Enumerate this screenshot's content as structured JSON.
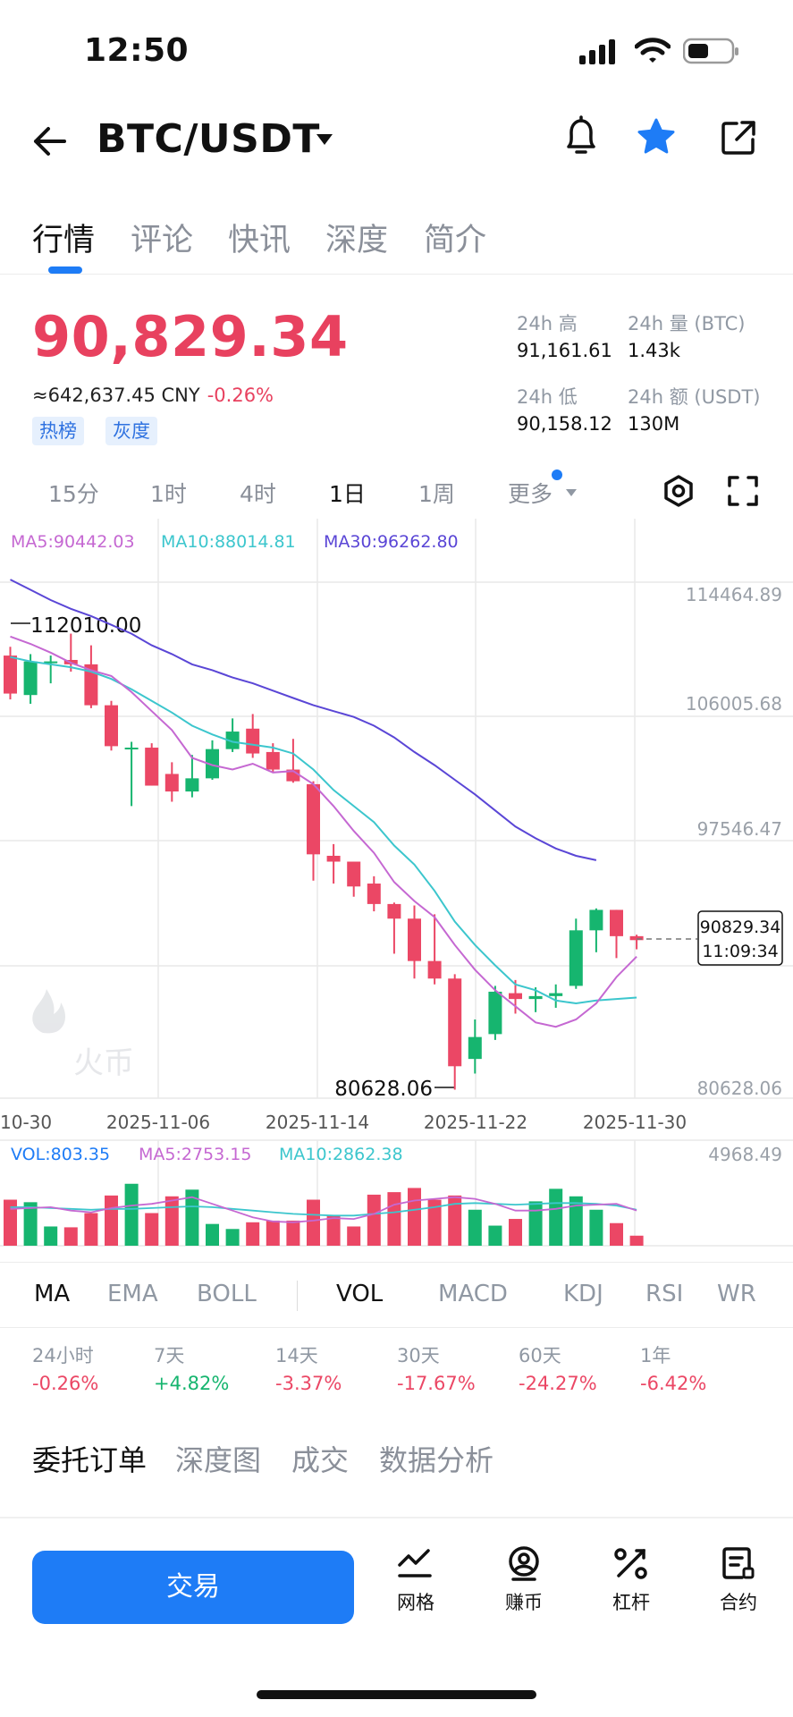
{
  "status": {
    "time": "12:50"
  },
  "header": {
    "pair": "BTC/USDT"
  },
  "tabs": [
    "行情",
    "评论",
    "快讯",
    "深度",
    "简介"
  ],
  "price": {
    "last": "90,829.34",
    "cny": "≈642,637.45 CNY",
    "change": "-0.26%",
    "tags": [
      "热榜",
      "灰度"
    ]
  },
  "stats": {
    "high_label": "24h 高",
    "high": "91,161.61",
    "vol_label": "24h 量 (BTC)",
    "vol": "1.43k",
    "low_label": "24h 低",
    "low": "90,158.12",
    "amt_label": "24h 额 (USDT)",
    "amt": "130M"
  },
  "intervals": [
    "15分",
    "1时",
    "4时",
    "1日",
    "1周",
    "更多"
  ],
  "ma_legend": {
    "ma5": "MA5:90442.03",
    "ma10": "MA10:88014.81",
    "ma30": "MA30:96262.80"
  },
  "watermark": "火币",
  "colors": {
    "up": "#16b56f",
    "down": "#eb4765",
    "ma5": "#c568d2",
    "ma10": "#3cc6cd",
    "ma30": "#5a46d6",
    "accent": "#1e7cf6"
  },
  "chart_data": {
    "type": "candlestick",
    "y_axis_labels": [
      "114464.89",
      "106005.68",
      "97546.47",
      "80628.06"
    ],
    "ylim": [
      80628.06,
      114464.89
    ],
    "x_axis_labels": [
      "10-30",
      "2025-11-06",
      "2025-11-14",
      "2025-11-22",
      "2025-11-30"
    ],
    "annotations": {
      "high": "112010.00",
      "low": "80628.06"
    },
    "last_price_label": "90829.34",
    "countdown": "11:09:34",
    "candles": [
      {
        "o": 110300,
        "h": 110900,
        "l": 107300,
        "c": 107700
      },
      {
        "o": 107600,
        "h": 110400,
        "l": 107000,
        "c": 109900
      },
      {
        "o": 109800,
        "h": 110300,
        "l": 108400,
        "c": 109900
      },
      {
        "o": 110000,
        "h": 111800,
        "l": 109200,
        "c": 109700
      },
      {
        "o": 109700,
        "h": 111000,
        "l": 106700,
        "c": 106900
      },
      {
        "o": 106900,
        "h": 107200,
        "l": 103800,
        "c": 104100
      },
      {
        "o": 103900,
        "h": 104400,
        "l": 100000,
        "c": 104000
      },
      {
        "o": 104000,
        "h": 104300,
        "l": 101400,
        "c": 101400
      },
      {
        "o": 102200,
        "h": 103000,
        "l": 100300,
        "c": 101000
      },
      {
        "o": 101000,
        "h": 103500,
        "l": 100600,
        "c": 101900
      },
      {
        "o": 101900,
        "h": 104500,
        "l": 101800,
        "c": 103900
      },
      {
        "o": 103900,
        "h": 106000,
        "l": 103700,
        "c": 105100
      },
      {
        "o": 105300,
        "h": 106300,
        "l": 103300,
        "c": 103600
      },
      {
        "o": 103700,
        "h": 104300,
        "l": 102300,
        "c": 102500
      },
      {
        "o": 102500,
        "h": 104600,
        "l": 101600,
        "c": 101700
      },
      {
        "o": 101500,
        "h": 101700,
        "l": 94900,
        "c": 96700
      },
      {
        "o": 96600,
        "h": 97400,
        "l": 94700,
        "c": 96200
      },
      {
        "o": 96200,
        "h": 96200,
        "l": 93800,
        "c": 94500
      },
      {
        "o": 94700,
        "h": 95200,
        "l": 92800,
        "c": 93300
      },
      {
        "o": 93300,
        "h": 93400,
        "l": 89900,
        "c": 92300
      },
      {
        "o": 92300,
        "h": 93200,
        "l": 88200,
        "c": 89400
      },
      {
        "o": 89400,
        "h": 92600,
        "l": 87800,
        "c": 88200
      },
      {
        "o": 88200,
        "h": 88500,
        "l": 80600,
        "c": 82200
      },
      {
        "o": 82700,
        "h": 85400,
        "l": 81700,
        "c": 84200
      },
      {
        "o": 84400,
        "h": 87700,
        "l": 84000,
        "c": 87300
      },
      {
        "o": 87200,
        "h": 88100,
        "l": 85800,
        "c": 86800
      },
      {
        "o": 86800,
        "h": 87600,
        "l": 85900,
        "c": 87000
      },
      {
        "o": 87000,
        "h": 87800,
        "l": 86200,
        "c": 87200
      },
      {
        "o": 87700,
        "h": 92300,
        "l": 87500,
        "c": 91500
      },
      {
        "o": 91500,
        "h": 93000,
        "l": 90000,
        "c": 92900
      },
      {
        "o": 92900,
        "h": 92900,
        "l": 89600,
        "c": 91100
      },
      {
        "o": 91100,
        "h": 91200,
        "l": 90200,
        "c": 90829.34
      }
    ],
    "ma5": [
      111600,
      111100,
      110500,
      109800,
      109300,
      108900,
      107800,
      106500,
      105200,
      103300,
      102800,
      102500,
      102900,
      102300,
      102400,
      101500,
      100000,
      98300,
      96800,
      94800,
      93500,
      92400,
      90500,
      88800,
      87400,
      86300,
      85200,
      84900,
      85400,
      86500,
      88300,
      89700
    ],
    "ma10": [
      110200,
      109900,
      109700,
      109500,
      109200,
      108700,
      108000,
      107200,
      106400,
      105500,
      104900,
      104400,
      104200,
      104000,
      103600,
      102500,
      101100,
      100000,
      98900,
      97300,
      96000,
      94200,
      92100,
      90500,
      89100,
      87800,
      87400,
      86700,
      86500,
      86700,
      86800,
      86900
    ],
    "ma30": [
      115500,
      114800,
      114100,
      113500,
      113000,
      112400,
      111800,
      111000,
      110400,
      109700,
      109300,
      108800,
      108400,
      107900,
      107400,
      106900,
      106500,
      106100,
      105500,
      104700,
      103700,
      102800,
      101800,
      100800,
      99700,
      98600,
      97800,
      97100,
      96600,
      96300
    ],
    "volume": {
      "labels": {
        "vol": "VOL:803.35",
        "ma5": "MA5:2753.15",
        "ma10": "MA10:2862.38",
        "max": "4968.49"
      },
      "max": 4968.49,
      "bars": [
        2750,
        2600,
        1150,
        1100,
        1950,
        3000,
        3700,
        1950,
        2950,
        3350,
        1300,
        1000,
        1400,
        1500,
        1500,
        2750,
        1800,
        1150,
        3050,
        3200,
        3450,
        2750,
        3000,
        2150,
        1200,
        1600,
        2650,
        3400,
        2950,
        2150,
        1350,
        600
      ],
      "ma5": [
        2200,
        2250,
        2300,
        2100,
        2000,
        2250,
        2400,
        2500,
        2700,
        2900,
        2500,
        2100,
        1700,
        1450,
        1400,
        1500,
        1650,
        1600,
        1900,
        2450,
        2700,
        2800,
        2900,
        2800,
        2500,
        2100,
        2100,
        2200,
        2400,
        2450,
        2500,
        2100
      ],
      "ma10": [
        2300,
        2300,
        2250,
        2200,
        2150,
        2200,
        2200,
        2250,
        2300,
        2350,
        2300,
        2200,
        2100,
        2000,
        1900,
        1850,
        1800,
        1800,
        1900,
        2000,
        2150,
        2300,
        2500,
        2550,
        2500,
        2450,
        2500,
        2550,
        2550,
        2500,
        2400,
        2150
      ]
    }
  },
  "indicators": [
    "MA",
    "EMA",
    "BOLL",
    "VOL",
    "MACD",
    "KDJ",
    "RSI",
    "WR"
  ],
  "performance": [
    {
      "label": "24小时",
      "value": "-0.26%",
      "dir": "down"
    },
    {
      "label": "7天",
      "value": "+4.82%",
      "dir": "up"
    },
    {
      "label": "14天",
      "value": "-3.37%",
      "dir": "down"
    },
    {
      "label": "30天",
      "value": "-17.67%",
      "dir": "down"
    },
    {
      "label": "60天",
      "value": "-24.27%",
      "dir": "down"
    },
    {
      "label": "1年",
      "value": "-6.42%",
      "dir": "down"
    }
  ],
  "bottom_tabs": [
    "委托订单",
    "深度图",
    "成交",
    "数据分析"
  ],
  "bottom_nav": {
    "trade": "交易",
    "items": [
      {
        "label": "网格",
        "icon": "grid-chart-icon"
      },
      {
        "label": "赚币",
        "icon": "earn-icon"
      },
      {
        "label": "杠杆",
        "icon": "leverage-icon"
      },
      {
        "label": "合约",
        "icon": "contract-icon"
      }
    ]
  }
}
